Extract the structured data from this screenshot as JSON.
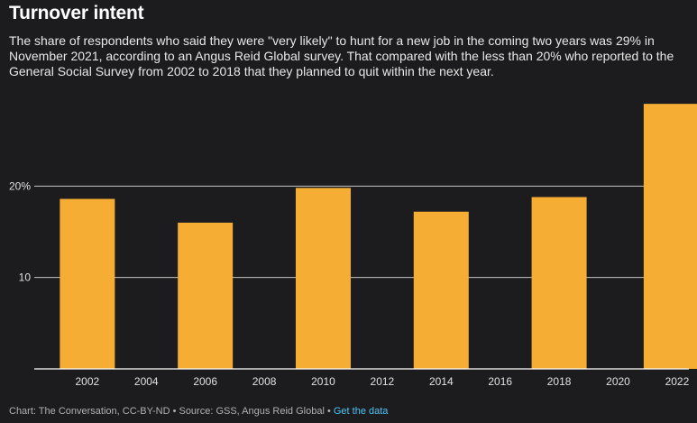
{
  "title": "Turnover intent",
  "subtitle": "The share of respondents who said they were \"very likely\" to hunt for a new job in the coming two years was 29% in November 2021, according to an Angus Reid Global survey. That compared with the less than 20% who reported to the General Social Survey from 2002 to 2018 that they planned to quit within the next year.",
  "footer": {
    "credit": "Chart: The Conversation, CC-BY-ND • Source: GSS, Angus Reid Global • ",
    "link_label": "Get the data"
  },
  "colors": {
    "bar": "#f5ad33",
    "background": "#1c1c1e",
    "gridline": "#ffffff",
    "link": "#4fc3f7"
  },
  "chart_data": {
    "type": "bar",
    "x": [
      2002,
      2006,
      2010,
      2014,
      2018,
      2021.8
    ],
    "values": [
      18.6,
      16.0,
      19.8,
      17.2,
      18.8,
      29.0
    ],
    "xlim": [
      2000.2,
      2022.4
    ],
    "ylim": [
      0,
      30
    ],
    "x_ticks": [
      "2002",
      "2004",
      "2006",
      "2008",
      "2010",
      "2012",
      "2014",
      "2016",
      "2018",
      "2020",
      "2022"
    ],
    "x_tick_values": [
      2002,
      2004,
      2006,
      2008,
      2010,
      2012,
      2014,
      2016,
      2018,
      2020,
      2022
    ],
    "y_ticks": [
      "10",
      "20%"
    ],
    "y_tick_values": [
      10,
      20
    ],
    "grid": true,
    "xlabel": "",
    "ylabel": ""
  }
}
